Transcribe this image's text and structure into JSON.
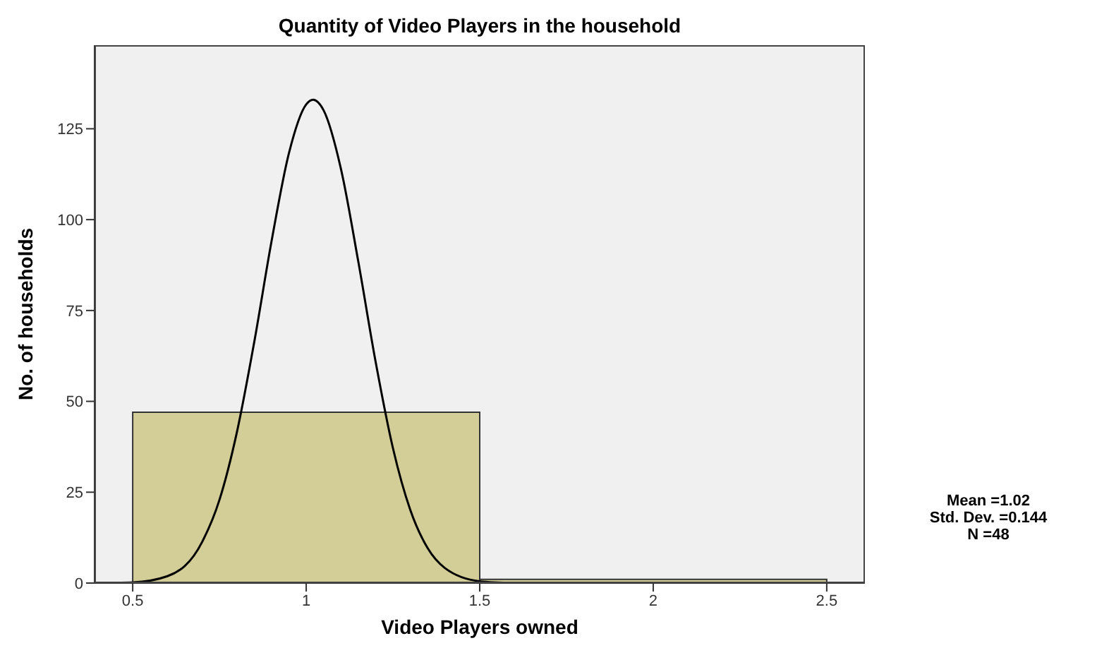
{
  "chart_data": {
    "type": "histogram",
    "title": "Quantity of Video Players in the household",
    "xlabel": "Video Players owned",
    "ylabel": "No. of households",
    "bins": [
      0.5,
      1.5,
      2.5
    ],
    "values": [
      47,
      1
    ],
    "color": "#d3cd98",
    "series": [
      {
        "type": "line",
        "color": "#000000",
        "x": [
          0.39,
          0.5,
          0.6,
          0.7,
          0.75,
          0.8,
          0.85,
          0.9,
          0.95,
          1.0,
          1.02,
          1.05,
          1.1,
          1.15,
          1.2,
          1.25,
          1.3,
          1.35,
          1.4,
          1.5,
          1.6
        ],
        "values": [
          0,
          0.2,
          1.9,
          11.3,
          22.9,
          41.4,
          66.2,
          94,
          118.2,
          131.7,
          133,
          130.1,
          114,
          88.5,
          60.9,
          37.1,
          20.1,
          9.6,
          4.1,
          0.5,
          0
        ]
      }
    ],
    "xlim": [
      0.39,
      2.61
    ],
    "xticks": [
      0.5,
      1,
      1.5,
      2,
      2.5
    ],
    "ylim": [
      0,
      148
    ],
    "yticks": [
      0,
      25,
      50,
      75,
      100,
      125
    ],
    "grid": false,
    "marker": "none",
    "line_style": "solid",
    "annotations": [
      "Mean =1.02",
      "Std. Dev. =0.144",
      "N =48"
    ]
  }
}
